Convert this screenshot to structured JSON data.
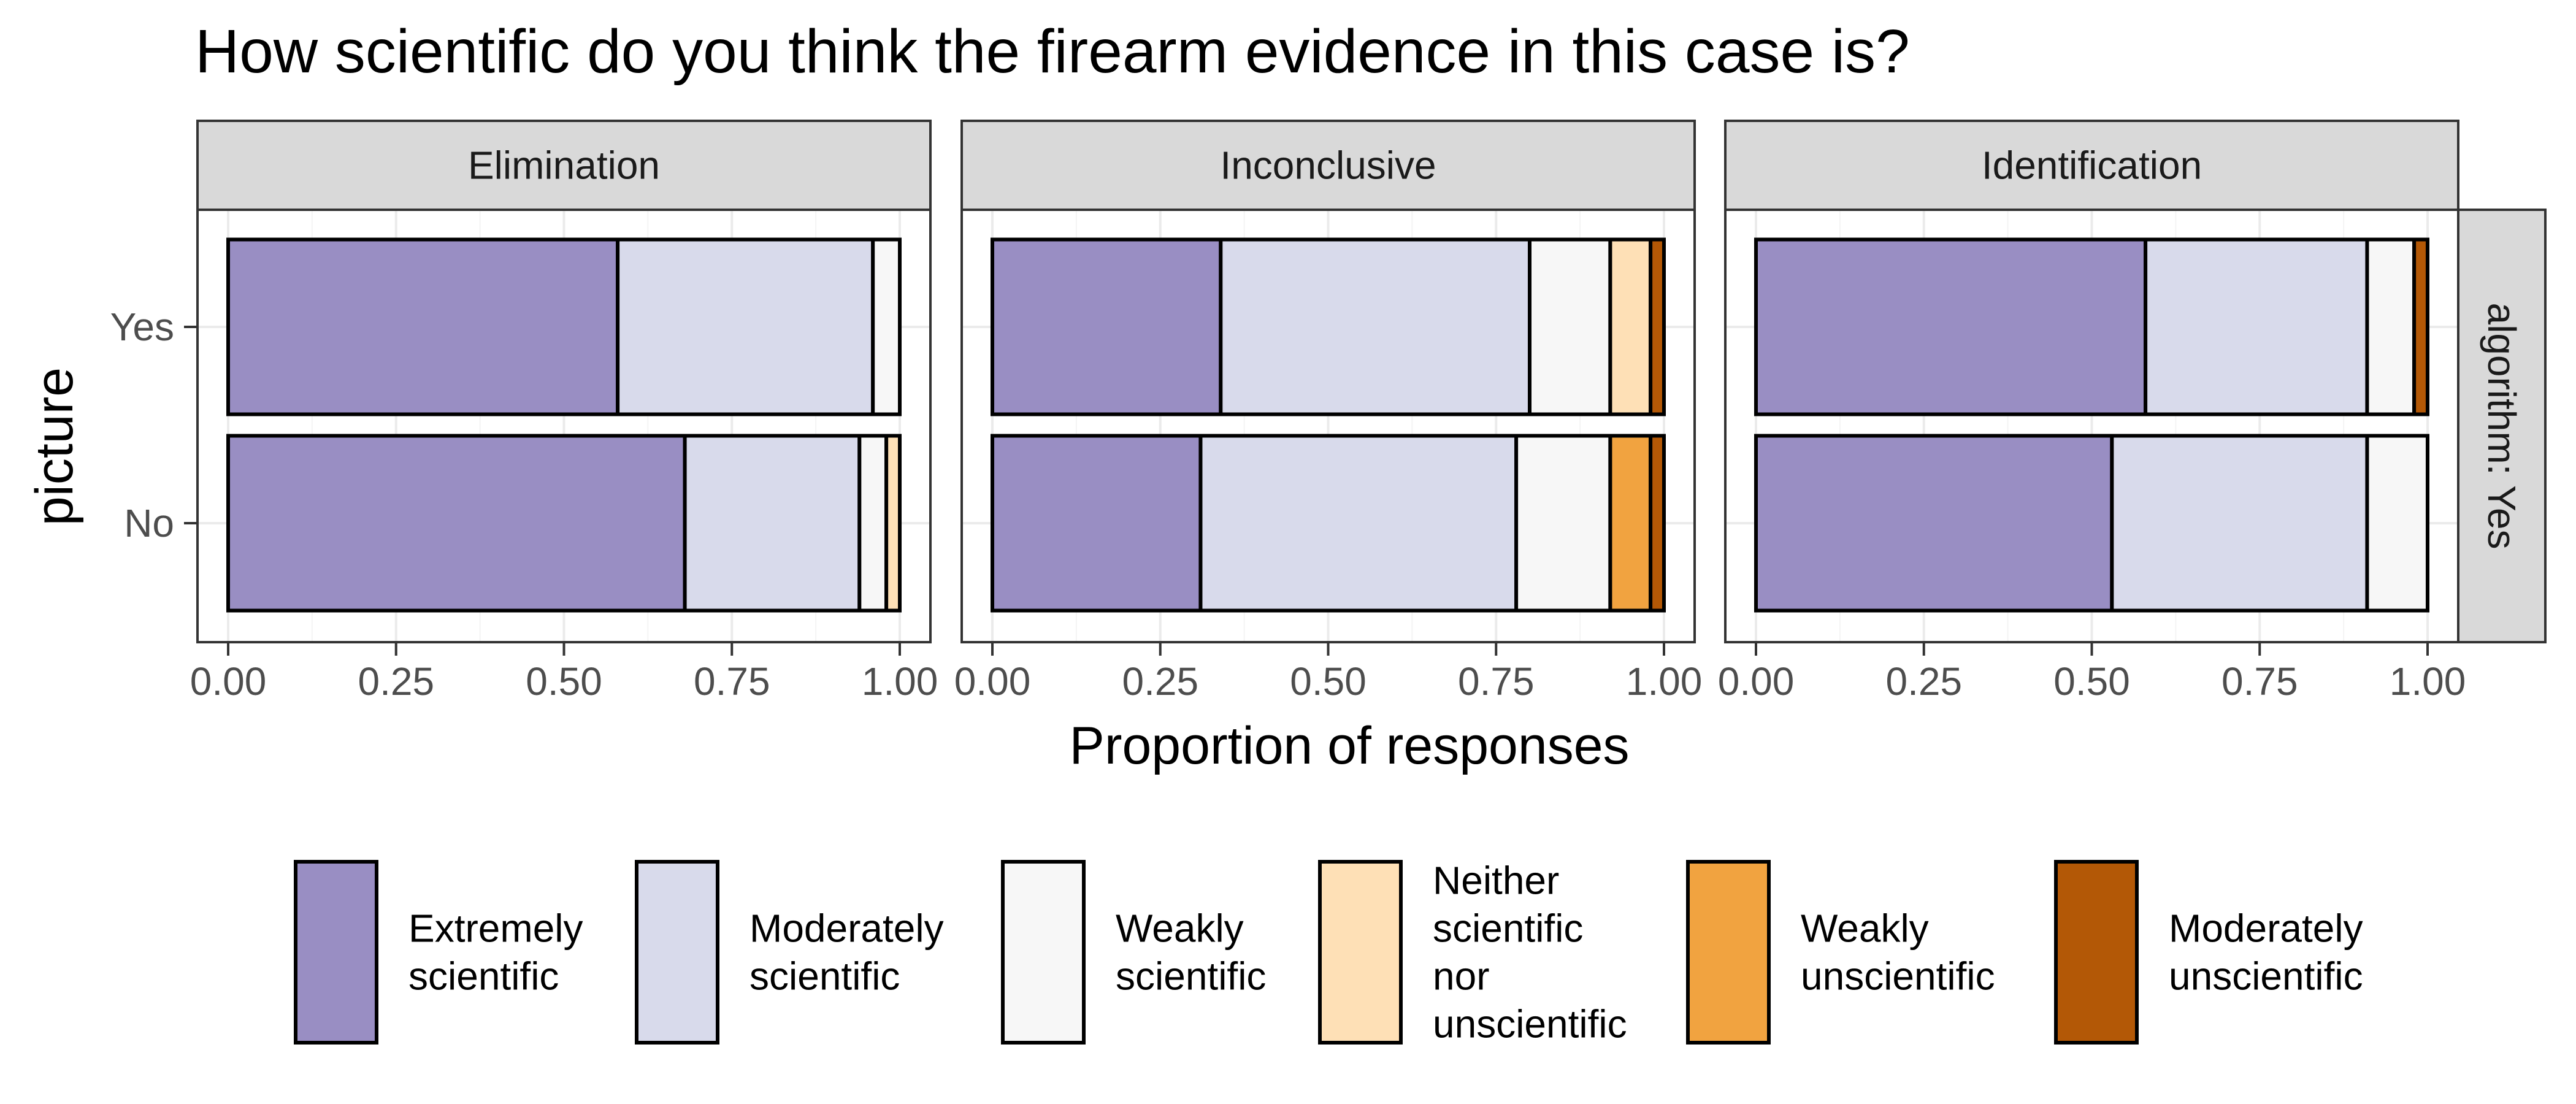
{
  "chart_data": {
    "type": "bar",
    "orientation": "horizontal",
    "stacked": true,
    "title": "How scientific do you think the firearm evidence in this case is?",
    "xlabel": "Proportion of responses",
    "ylabel": "picture",
    "xlim": [
      0,
      1
    ],
    "x_ticks": [
      "0.00",
      "0.25",
      "0.50",
      "0.75",
      "1.00"
    ],
    "x_tick_values": [
      0,
      0.25,
      0.5,
      0.75,
      1
    ],
    "categories": [
      "Yes",
      "No"
    ],
    "row_strip": "algorithm: Yes",
    "grid": true,
    "legend_position": "bottom",
    "levels": [
      {
        "name": "Extremely scientific",
        "lines": [
          "Extremely",
          "scientific"
        ],
        "color": "#998ec3"
      },
      {
        "name": "Moderately scientific",
        "lines": [
          "Moderately",
          "scientific"
        ],
        "color": "#d8daeb"
      },
      {
        "name": "Weakly scientific",
        "lines": [
          "Weakly",
          "scientific"
        ],
        "color": "#f7f7f7"
      },
      {
        "name": "Neither scientific nor unscientific",
        "lines": [
          "Neither",
          "scientific",
          "nor",
          "unscientific"
        ],
        "color": "#fee0b6"
      },
      {
        "name": "Weakly unscientific",
        "lines": [
          "Weakly",
          "unscientific"
        ],
        "color": "#f1a340"
      },
      {
        "name": "Moderately unscientific",
        "lines": [
          "Moderately",
          "unscientific"
        ],
        "color": "#b35806"
      }
    ],
    "panels": [
      {
        "facet": "Elimination",
        "rows": [
          {
            "category": "Yes",
            "values": [
              0.58,
              0.38,
              0.04,
              0,
              0,
              0
            ]
          },
          {
            "category": "No",
            "values": [
              0.68,
              0.26,
              0.04,
              0.02,
              0,
              0
            ]
          }
        ]
      },
      {
        "facet": "Inconclusive",
        "rows": [
          {
            "category": "Yes",
            "values": [
              0.34,
              0.46,
              0.12,
              0.06,
              0,
              0.02
            ]
          },
          {
            "category": "No",
            "values": [
              0.31,
              0.47,
              0.14,
              0,
              0.06,
              0.02
            ]
          }
        ]
      },
      {
        "facet": "Identification",
        "rows": [
          {
            "category": "Yes",
            "values": [
              0.58,
              0.33,
              0.07,
              0,
              0,
              0.02
            ]
          },
          {
            "category": "No",
            "values": [
              0.53,
              0.38,
              0.09,
              0,
              0,
              0
            ]
          }
        ]
      }
    ]
  }
}
